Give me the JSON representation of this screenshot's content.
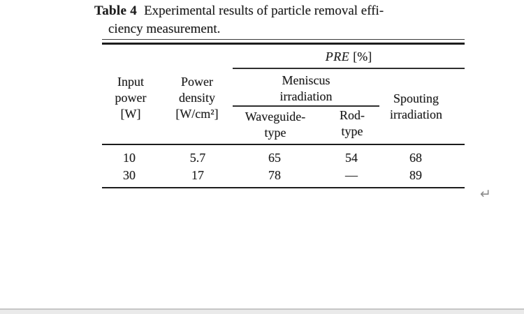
{
  "caption": {
    "label": "Table 4",
    "line1": "Experimental results of particle removal effi-",
    "line2": "ciency measurement."
  },
  "table": {
    "pre_group": {
      "name": "PRE",
      "unit": "[%]"
    },
    "headers": {
      "input_power": {
        "line1": "Input",
        "line2": "power",
        "unit": "[W]"
      },
      "power_density": {
        "line1": "Power",
        "line2": "density",
        "unit": "[W/cm²]"
      },
      "meniscus": {
        "line1": "Meniscus",
        "line2": "irradiation"
      },
      "waveguide": {
        "line1": "Waveguide-",
        "line2": "type"
      },
      "rod": {
        "line1": "Rod-",
        "line2": "type"
      },
      "spouting": {
        "line1": "Spouting",
        "line2": "irradiation"
      }
    },
    "rows": [
      {
        "input_power": "10",
        "power_density": "5.7",
        "waveguide": "65",
        "rod": "54",
        "spouting": "68"
      },
      {
        "input_power": "30",
        "power_density": "17",
        "waveguide": "78",
        "rod": "—",
        "spouting": "89"
      }
    ]
  },
  "annotations": {
    "return_mark": "↵"
  },
  "colors": {
    "text": "#1e1e1e",
    "rule": "#1c1c1c",
    "scrollbar_track": "#eaeaea",
    "scrollbar_border": "#c6c6c6",
    "return_mark": "#8a8a8a"
  }
}
